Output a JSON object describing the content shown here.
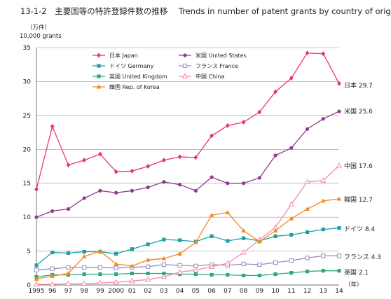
{
  "header": {
    "code": "13-1-2",
    "title_jp": "主要国等の特許登録件数の推移",
    "title_en": "Trends in number of patent grants by country of origin"
  },
  "chart_data": {
    "type": "line",
    "title": "主要国等の特許登録件数の推移 Trends in number of patent grants by country of origin",
    "ylabel_lines": [
      "（万件）",
      "10,000 grants"
    ],
    "xlabel": "（年）",
    "ylim": [
      0,
      35
    ],
    "yticks": [
      0,
      5,
      10,
      15,
      20,
      25,
      30,
      35
    ],
    "x": [
      "1995",
      "96",
      "97",
      "98",
      "99",
      "2000",
      "01",
      "02",
      "03",
      "04",
      "05",
      "06",
      "07",
      "08",
      "09",
      "10",
      "11",
      "12",
      "13",
      "14"
    ],
    "grid": "horizontal",
    "legend_position": "top-left",
    "series": [
      {
        "name": "日本 Japan",
        "end_label": "日本 29.7",
        "color": "#e8366c",
        "marker": "diamond",
        "values": [
          14.1,
          23.4,
          17.7,
          18.4,
          19.3,
          16.7,
          16.8,
          17.5,
          18.4,
          18.9,
          18.8,
          22.0,
          23.5,
          24.0,
          25.5,
          28.5,
          30.5,
          34.2,
          34.1,
          29.7
        ]
      },
      {
        "name": "米国 United States",
        "end_label": "米国 25.6",
        "color": "#8e3c8e",
        "marker": "circle",
        "values": [
          10.0,
          10.9,
          11.2,
          12.8,
          13.9,
          13.6,
          13.9,
          14.4,
          15.2,
          14.8,
          13.9,
          15.9,
          15.0,
          15.0,
          15.8,
          19.1,
          20.2,
          23.0,
          24.5,
          25.6
        ]
      },
      {
        "name": "ドイツ Germany",
        "end_label": "ドイツ 8.4",
        "color": "#1aa0a8",
        "marker": "square",
        "values": [
          2.9,
          4.8,
          4.7,
          4.9,
          4.9,
          4.6,
          5.3,
          6.0,
          6.7,
          6.6,
          6.4,
          7.2,
          6.5,
          6.9,
          6.5,
          7.2,
          7.4,
          7.8,
          8.2,
          8.4
        ]
      },
      {
        "name": "フランス France",
        "end_label": "フランス 4.3",
        "color": "#9b8cc6",
        "marker": "square-open",
        "values": [
          2.2,
          2.4,
          2.6,
          2.6,
          2.6,
          2.5,
          2.6,
          2.7,
          3.0,
          2.9,
          2.8,
          3.0,
          2.9,
          3.1,
          3.0,
          3.3,
          3.6,
          4.0,
          4.3,
          4.3
        ]
      },
      {
        "name": "英国 United Kingdom",
        "end_label": "英国 2.1",
        "color": "#2dab74",
        "marker": "square",
        "values": [
          1.2,
          1.5,
          1.5,
          1.6,
          1.6,
          1.6,
          1.7,
          1.7,
          1.7,
          1.6,
          1.6,
          1.5,
          1.5,
          1.4,
          1.4,
          1.6,
          1.8,
          2.0,
          2.1,
          2.1
        ]
      },
      {
        "name": "中国 China",
        "end_label": "中国 17.6",
        "color": "#f08ca8",
        "marker": "triangle-open",
        "values": [
          0.1,
          0.1,
          0.2,
          0.2,
          0.3,
          0.4,
          0.6,
          0.8,
          1.2,
          1.9,
          2.2,
          2.7,
          3.2,
          4.8,
          6.7,
          8.5,
          11.9,
          15.2,
          15.4,
          17.6
        ]
      },
      {
        "name": "韓国 Rep. of Korea",
        "end_label": "韓国 12.7",
        "color": "#f5871f",
        "marker": "triangle",
        "values": [
          0.9,
          1.3,
          1.7,
          4.2,
          5.0,
          3.1,
          2.8,
          3.7,
          3.9,
          4.6,
          6.3,
          10.3,
          10.7,
          8.0,
          6.4,
          8.0,
          9.8,
          11.2,
          12.4,
          12.7
        ]
      }
    ]
  }
}
